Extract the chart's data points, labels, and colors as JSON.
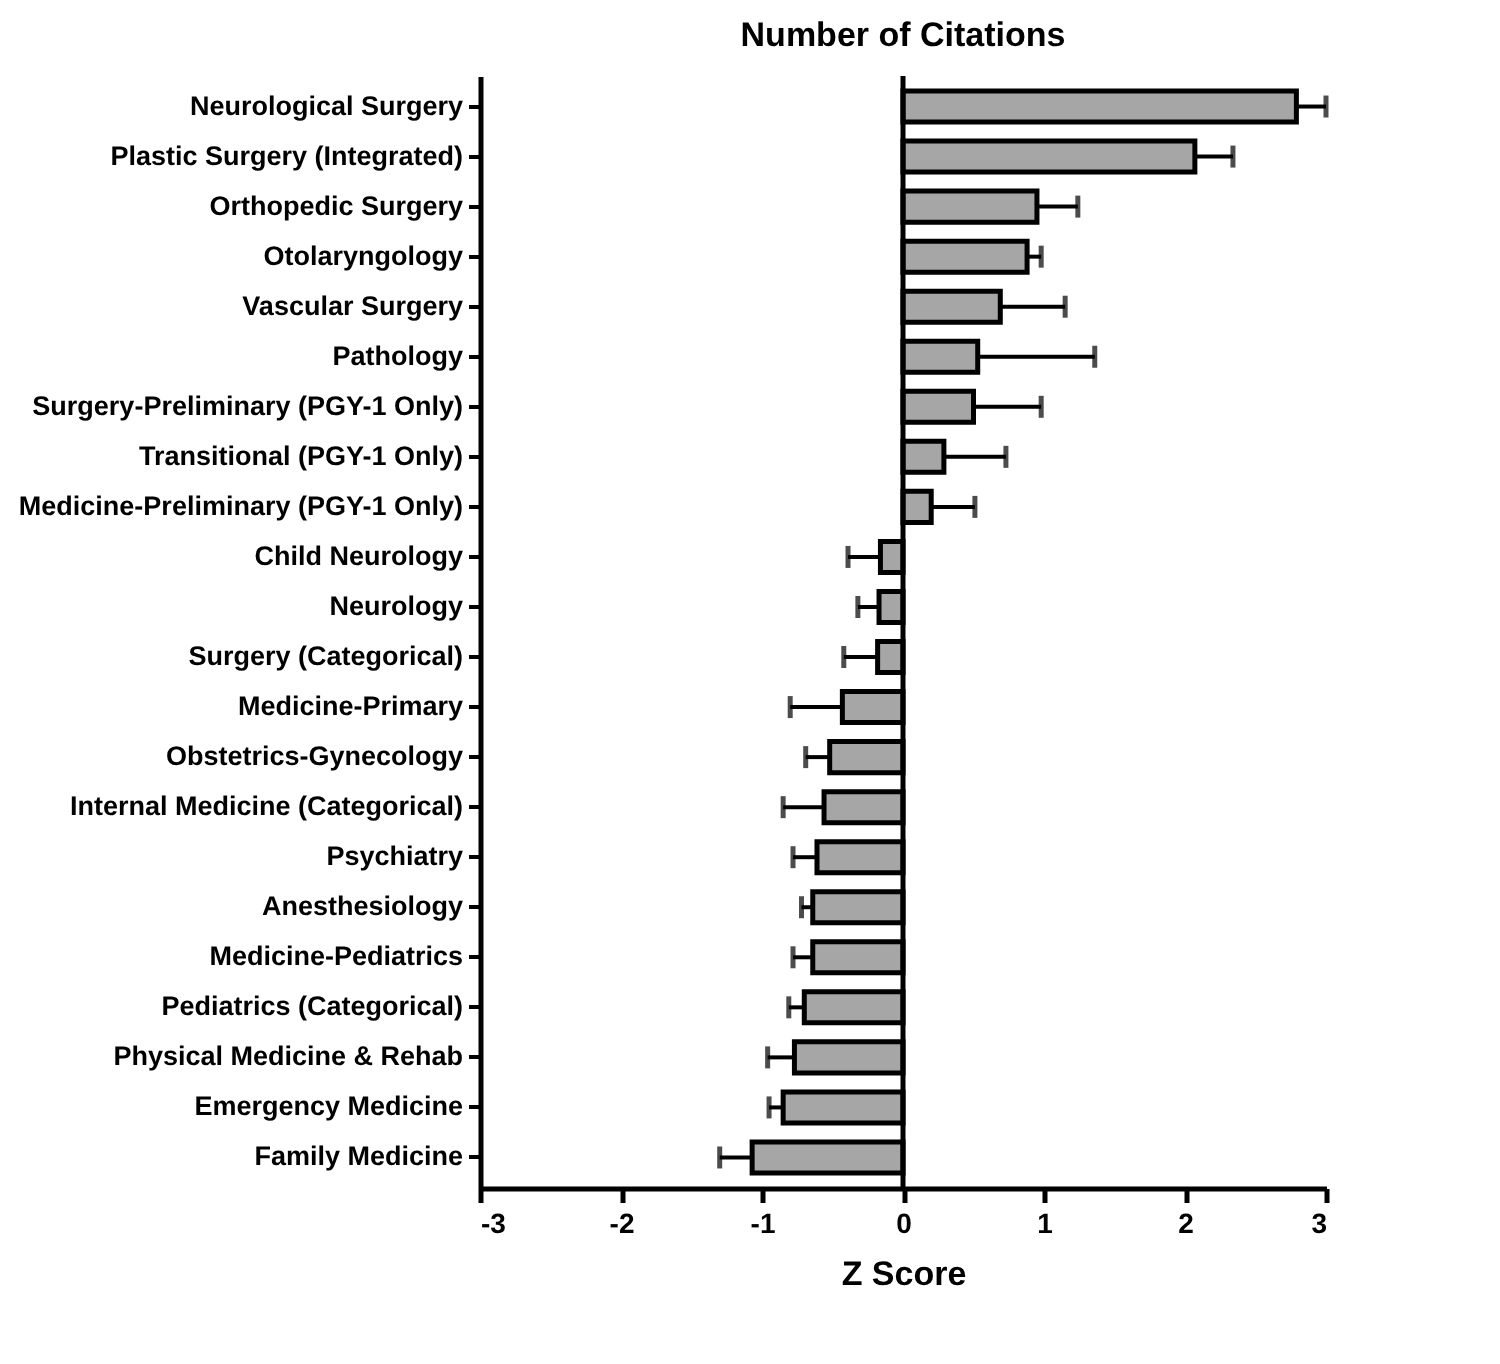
{
  "chart_data": {
    "type": "bar",
    "orientation": "horizontal",
    "title": "Number of Citations",
    "xlabel": "Z Score",
    "categories": [
      "Neurological Surgery",
      "Plastic Surgery (Integrated)",
      "Orthopedic Surgery",
      "Otolaryngology",
      "Vascular Surgery",
      "Pathology",
      "Surgery-Preliminary (PGY-1 Only)",
      "Transitional (PGY-1 Only)",
      "Medicine-Preliminary (PGY-1 Only)",
      "Child Neurology",
      "Neurology",
      "Surgery (Categorical)",
      "Medicine-Primary",
      "Obstetrics-Gynecology",
      "Internal Medicine (Categorical)",
      "Psychiatry",
      "Anesthesiology",
      "Medicine-Pediatrics",
      "Pediatrics (Categorical)",
      "Physical Medicine & Rehab",
      "Emergency Medicine",
      "Family Medicine"
    ],
    "values": [
      2.79,
      2.07,
      0.95,
      0.88,
      0.69,
      0.53,
      0.5,
      0.29,
      0.2,
      -0.16,
      -0.17,
      -0.18,
      -0.43,
      -0.52,
      -0.56,
      -0.61,
      -0.64,
      -0.64,
      -0.7,
      -0.77,
      -0.85,
      -1.07
    ],
    "errors": [
      [
        2.79,
        3.0
      ],
      [
        2.07,
        2.34
      ],
      [
        0.95,
        1.24
      ],
      [
        0.88,
        0.98
      ],
      [
        0.69,
        1.15
      ],
      [
        0.53,
        1.36
      ],
      [
        0.5,
        0.98
      ],
      [
        0.29,
        0.73
      ],
      [
        0.2,
        0.51
      ],
      [
        -0.39,
        -0.16
      ],
      [
        -0.32,
        -0.17
      ],
      [
        -0.42,
        -0.18
      ],
      [
        -0.8,
        -0.43
      ],
      [
        -0.69,
        -0.52
      ],
      [
        -0.85,
        -0.56
      ],
      [
        -0.78,
        -0.61
      ],
      [
        -0.72,
        -0.64
      ],
      [
        -0.78,
        -0.64
      ],
      [
        -0.81,
        -0.7
      ],
      [
        -0.96,
        -0.77
      ],
      [
        -0.95,
        -0.85
      ],
      [
        -1.3,
        -1.07
      ]
    ],
    "color": "#a6a6a6",
    "xlim": [
      -3,
      3
    ],
    "xticks": [
      -3,
      -2,
      -1,
      0,
      1,
      2,
      3
    ],
    "ref_lines": [
      {
        "axis": "x",
        "value": 0,
        "color": "#000000"
      }
    ],
    "grid": false
  }
}
